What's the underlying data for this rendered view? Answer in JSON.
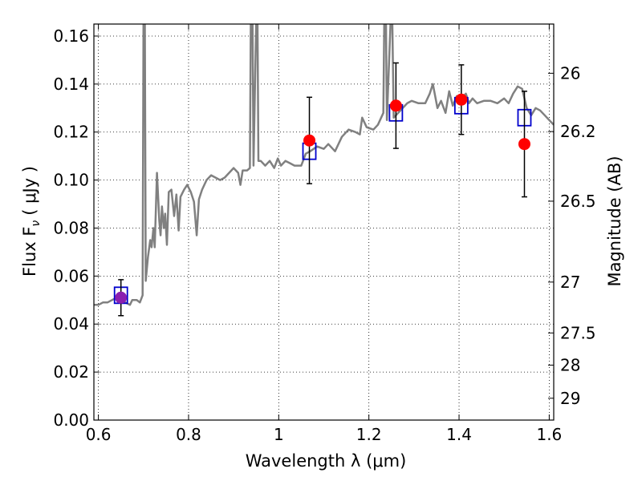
{
  "chart_data": {
    "type": "line",
    "xlabel": "Wavelength  λ (μm)",
    "ylabel_left": "Flux  F",
    "ylabel_left_sub": "ν",
    "ylabel_left_unit": "( μJy )",
    "ylabel_right": "Magnitude (AB)",
    "xlim": [
      0.59,
      1.61
    ],
    "ylim": [
      0.0,
      0.165
    ],
    "x_ticks": [
      0.6,
      0.8,
      1.0,
      1.2,
      1.4,
      1.6
    ],
    "x_tick_labels": [
      "0.6",
      "0.8",
      "1",
      "1.2",
      "1.4",
      "1.6"
    ],
    "y_ticks": [
      0.0,
      0.02,
      0.04,
      0.06,
      0.08,
      0.1,
      0.12,
      0.14,
      0.16
    ],
    "y_tick_labels": [
      "0.00",
      "0.02",
      "0.04",
      "0.06",
      "0.08",
      "0.10",
      "0.12",
      "0.14",
      "0.16"
    ],
    "right_ticks": [
      {
        "flux": 0.1445,
        "label": "26"
      },
      {
        "flux": 0.1202,
        "label": "26.2"
      },
      {
        "flux": 0.0912,
        "label": "26.5"
      },
      {
        "flux": 0.0575,
        "label": "27"
      },
      {
        "flux": 0.0363,
        "label": "27.5"
      },
      {
        "flux": 0.0229,
        "label": "28"
      },
      {
        "flux": 0.0091,
        "label": "29"
      }
    ],
    "grid": true,
    "grid_style": "dotted",
    "colors": {
      "spectrum": "#808080",
      "model_box": "#0000cc",
      "observed": "#ff0000",
      "observed_blend": "#8b1fb0",
      "errorbar": "#000000"
    },
    "spectrum": [
      [
        0.59,
        0.048
      ],
      [
        0.6,
        0.048
      ],
      [
        0.61,
        0.049
      ],
      [
        0.62,
        0.049
      ],
      [
        0.63,
        0.05
      ],
      [
        0.64,
        0.051
      ],
      [
        0.65,
        0.05
      ],
      [
        0.66,
        0.049
      ],
      [
        0.67,
        0.048
      ],
      [
        0.675,
        0.05
      ],
      [
        0.685,
        0.05
      ],
      [
        0.692,
        0.049
      ],
      [
        0.698,
        0.052
      ],
      [
        0.7,
        0.165
      ],
      [
        0.703,
        0.165
      ],
      [
        0.705,
        0.058
      ],
      [
        0.71,
        0.068
      ],
      [
        0.715,
        0.075
      ],
      [
        0.718,
        0.072
      ],
      [
        0.722,
        0.08
      ],
      [
        0.725,
        0.072
      ],
      [
        0.73,
        0.103
      ],
      [
        0.735,
        0.083
      ],
      [
        0.738,
        0.077
      ],
      [
        0.741,
        0.089
      ],
      [
        0.745,
        0.08
      ],
      [
        0.748,
        0.086
      ],
      [
        0.752,
        0.073
      ],
      [
        0.756,
        0.095
      ],
      [
        0.762,
        0.096
      ],
      [
        0.768,
        0.085
      ],
      [
        0.773,
        0.094
      ],
      [
        0.778,
        0.079
      ],
      [
        0.782,
        0.093
      ],
      [
        0.79,
        0.096
      ],
      [
        0.797,
        0.098
      ],
      [
        0.805,
        0.095
      ],
      [
        0.812,
        0.091
      ],
      [
        0.818,
        0.077
      ],
      [
        0.823,
        0.092
      ],
      [
        0.83,
        0.096
      ],
      [
        0.84,
        0.1
      ],
      [
        0.85,
        0.102
      ],
      [
        0.86,
        0.101
      ],
      [
        0.87,
        0.1
      ],
      [
        0.88,
        0.101
      ],
      [
        0.89,
        0.103
      ],
      [
        0.9,
        0.105
      ],
      [
        0.91,
        0.103
      ],
      [
        0.915,
        0.098
      ],
      [
        0.92,
        0.104
      ],
      [
        0.93,
        0.104
      ],
      [
        0.936,
        0.105
      ],
      [
        0.938,
        0.165
      ],
      [
        0.942,
        0.165
      ],
      [
        0.944,
        0.106
      ],
      [
        0.95,
        0.165
      ],
      [
        0.953,
        0.165
      ],
      [
        0.955,
        0.108
      ],
      [
        0.96,
        0.108
      ],
      [
        0.97,
        0.106
      ],
      [
        0.98,
        0.108
      ],
      [
        0.99,
        0.105
      ],
      [
        0.998,
        0.109
      ],
      [
        1.005,
        0.106
      ],
      [
        1.015,
        0.108
      ],
      [
        1.025,
        0.107
      ],
      [
        1.035,
        0.106
      ],
      [
        1.05,
        0.106
      ],
      [
        1.06,
        0.111
      ],
      [
        1.07,
        0.112
      ],
      [
        1.085,
        0.114
      ],
      [
        1.1,
        0.113
      ],
      [
        1.11,
        0.115
      ],
      [
        1.125,
        0.112
      ],
      [
        1.14,
        0.118
      ],
      [
        1.155,
        0.121
      ],
      [
        1.17,
        0.12
      ],
      [
        1.18,
        0.119
      ],
      [
        1.185,
        0.126
      ],
      [
        1.195,
        0.122
      ],
      [
        1.21,
        0.121
      ],
      [
        1.22,
        0.123
      ],
      [
        1.232,
        0.128
      ],
      [
        1.234,
        0.165
      ],
      [
        1.238,
        0.165
      ],
      [
        1.24,
        0.125
      ],
      [
        1.248,
        0.165
      ],
      [
        1.252,
        0.165
      ],
      [
        1.255,
        0.126
      ],
      [
        1.265,
        0.128
      ],
      [
        1.275,
        0.13
      ],
      [
        1.285,
        0.132
      ],
      [
        1.295,
        0.133
      ],
      [
        1.31,
        0.132
      ],
      [
        1.325,
        0.132
      ],
      [
        1.335,
        0.136
      ],
      [
        1.342,
        0.14
      ],
      [
        1.352,
        0.13
      ],
      [
        1.36,
        0.133
      ],
      [
        1.37,
        0.128
      ],
      [
        1.378,
        0.137
      ],
      [
        1.386,
        0.131
      ],
      [
        1.395,
        0.135
      ],
      [
        1.405,
        0.134
      ],
      [
        1.415,
        0.136
      ],
      [
        1.422,
        0.132
      ],
      [
        1.43,
        0.134
      ],
      [
        1.44,
        0.132
      ],
      [
        1.455,
        0.133
      ],
      [
        1.47,
        0.133
      ],
      [
        1.485,
        0.132
      ],
      [
        1.5,
        0.134
      ],
      [
        1.51,
        0.132
      ],
      [
        1.52,
        0.136
      ],
      [
        1.53,
        0.139
      ],
      [
        1.54,
        0.138
      ],
      [
        1.55,
        0.13
      ],
      [
        1.56,
        0.127
      ],
      [
        1.57,
        0.13
      ],
      [
        1.58,
        0.129
      ],
      [
        1.59,
        0.127
      ],
      [
        1.6,
        0.125
      ],
      [
        1.61,
        0.123
      ]
    ],
    "model_points": [
      {
        "x": 0.65,
        "y": 0.052
      },
      {
        "x": 1.068,
        "y": 0.112
      },
      {
        "x": 1.26,
        "y": 0.128
      },
      {
        "x": 1.405,
        "y": 0.131
      },
      {
        "x": 1.545,
        "y": 0.126
      }
    ],
    "observed_points": [
      {
        "x": 0.65,
        "y": 0.051,
        "err": 0.0075,
        "color": "#8b1fb0"
      },
      {
        "x": 1.068,
        "y": 0.1165,
        "err": 0.018,
        "color": "#ff0000"
      },
      {
        "x": 1.26,
        "y": 0.131,
        "err": 0.0178,
        "color": "#ff0000"
      },
      {
        "x": 1.405,
        "y": 0.1335,
        "err": 0.0145,
        "color": "#ff0000"
      },
      {
        "x": 1.545,
        "y": 0.115,
        "err": 0.022,
        "color": "#ff0000"
      }
    ]
  }
}
